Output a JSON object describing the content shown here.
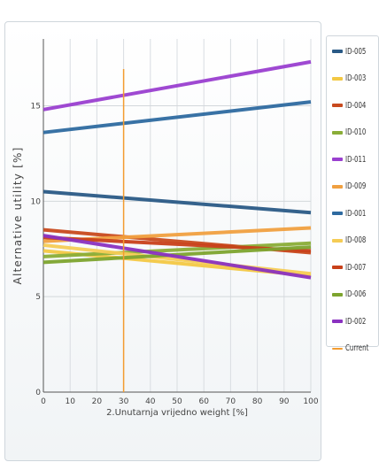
{
  "chart_data": {
    "type": "line",
    "xlabel": "2.Unutarnja vrijedno weight [%]",
    "ylabel": "Alternative utility [%]",
    "x_ticks": [
      "0",
      "10",
      "20",
      "30",
      "40",
      "50",
      "60",
      "70",
      "80",
      "90",
      "100"
    ],
    "y_ticks": [
      "0",
      "5",
      "10",
      "15"
    ],
    "xlim": [
      0,
      100
    ],
    "ylim": [
      0,
      18.5
    ],
    "grid": "vertical and horizontal",
    "legend_placement": "right",
    "current_marker": {
      "name": "Current",
      "x": 30,
      "color": "#f39c30"
    },
    "series": [
      {
        "name": "ID-005",
        "color": "#2a5a86",
        "x": [
          0,
          100
        ],
        "values": [
          10.5,
          9.4
        ]
      },
      {
        "name": "ID-003",
        "color": "#f3c844",
        "x": [
          0,
          100
        ],
        "values": [
          7.4,
          6.1
        ]
      },
      {
        "name": "ID-004",
        "color": "#c84a1e",
        "x": [
          0,
          100
        ],
        "values": [
          8.5,
          7.3
        ]
      },
      {
        "name": "ID-010",
        "color": "#8aad37",
        "x": [
          0,
          100
        ],
        "values": [
          7.1,
          7.8
        ]
      },
      {
        "name": "ID-011",
        "color": "#9a3fd0",
        "x": [
          0,
          100
        ],
        "values": [
          14.8,
          17.3
        ]
      },
      {
        "name": "ID-009",
        "color": "#f0a040",
        "x": [
          0,
          100
        ],
        "values": [
          7.9,
          8.6
        ]
      },
      {
        "name": "ID-001",
        "color": "#2e6aa0",
        "x": [
          0,
          100
        ],
        "values": [
          13.6,
          15.2
        ]
      },
      {
        "name": "ID-008",
        "color": "#f5cc55",
        "x": [
          0,
          100
        ],
        "values": [
          7.7,
          6.2
        ]
      },
      {
        "name": "ID-007",
        "color": "#c8401a",
        "x": [
          0,
          100
        ],
        "values": [
          8.1,
          7.4
        ]
      },
      {
        "name": "ID-006",
        "color": "#7da42e",
        "x": [
          0,
          100
        ],
        "values": [
          6.8,
          7.6
        ]
      },
      {
        "name": "ID-002",
        "color": "#8a32c0",
        "x": [
          0,
          100
        ],
        "values": [
          8.2,
          6.0
        ]
      }
    ]
  }
}
